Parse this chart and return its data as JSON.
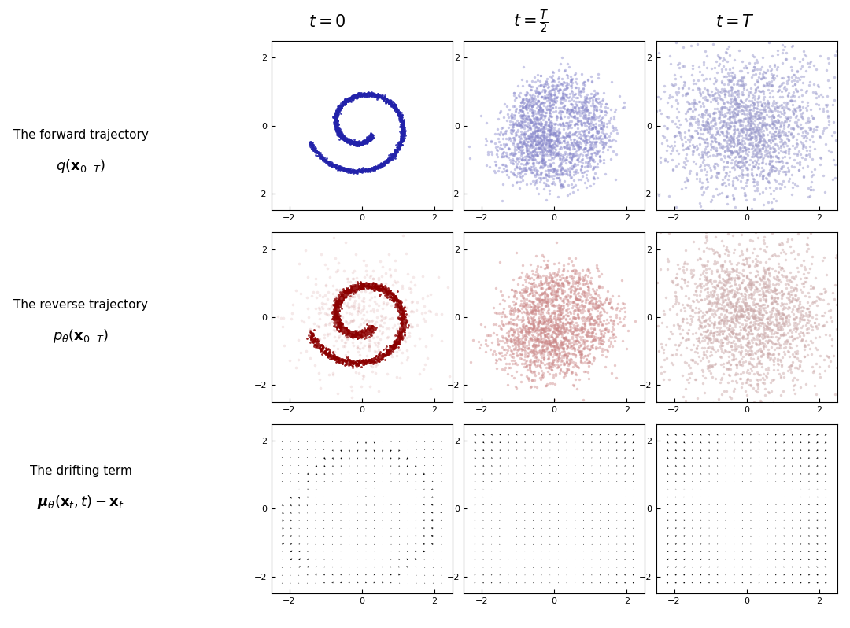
{
  "background_color": "#ffffff",
  "col_titles": [
    "$t = 0$",
    "$t = \\frac{T}{2}$",
    "$t = T$"
  ],
  "blue_dense": "#2222aa",
  "blue_mid": "#8888cc",
  "blue_scatter": "#9999cc",
  "red_dense": "#8b0000",
  "red_mid": "#cc8888",
  "red_scatter": "#ccaaaa",
  "n_points": 2000,
  "quiver_grid": 20,
  "figsize": [
    10.8,
    7.98
  ],
  "dpi": 100
}
